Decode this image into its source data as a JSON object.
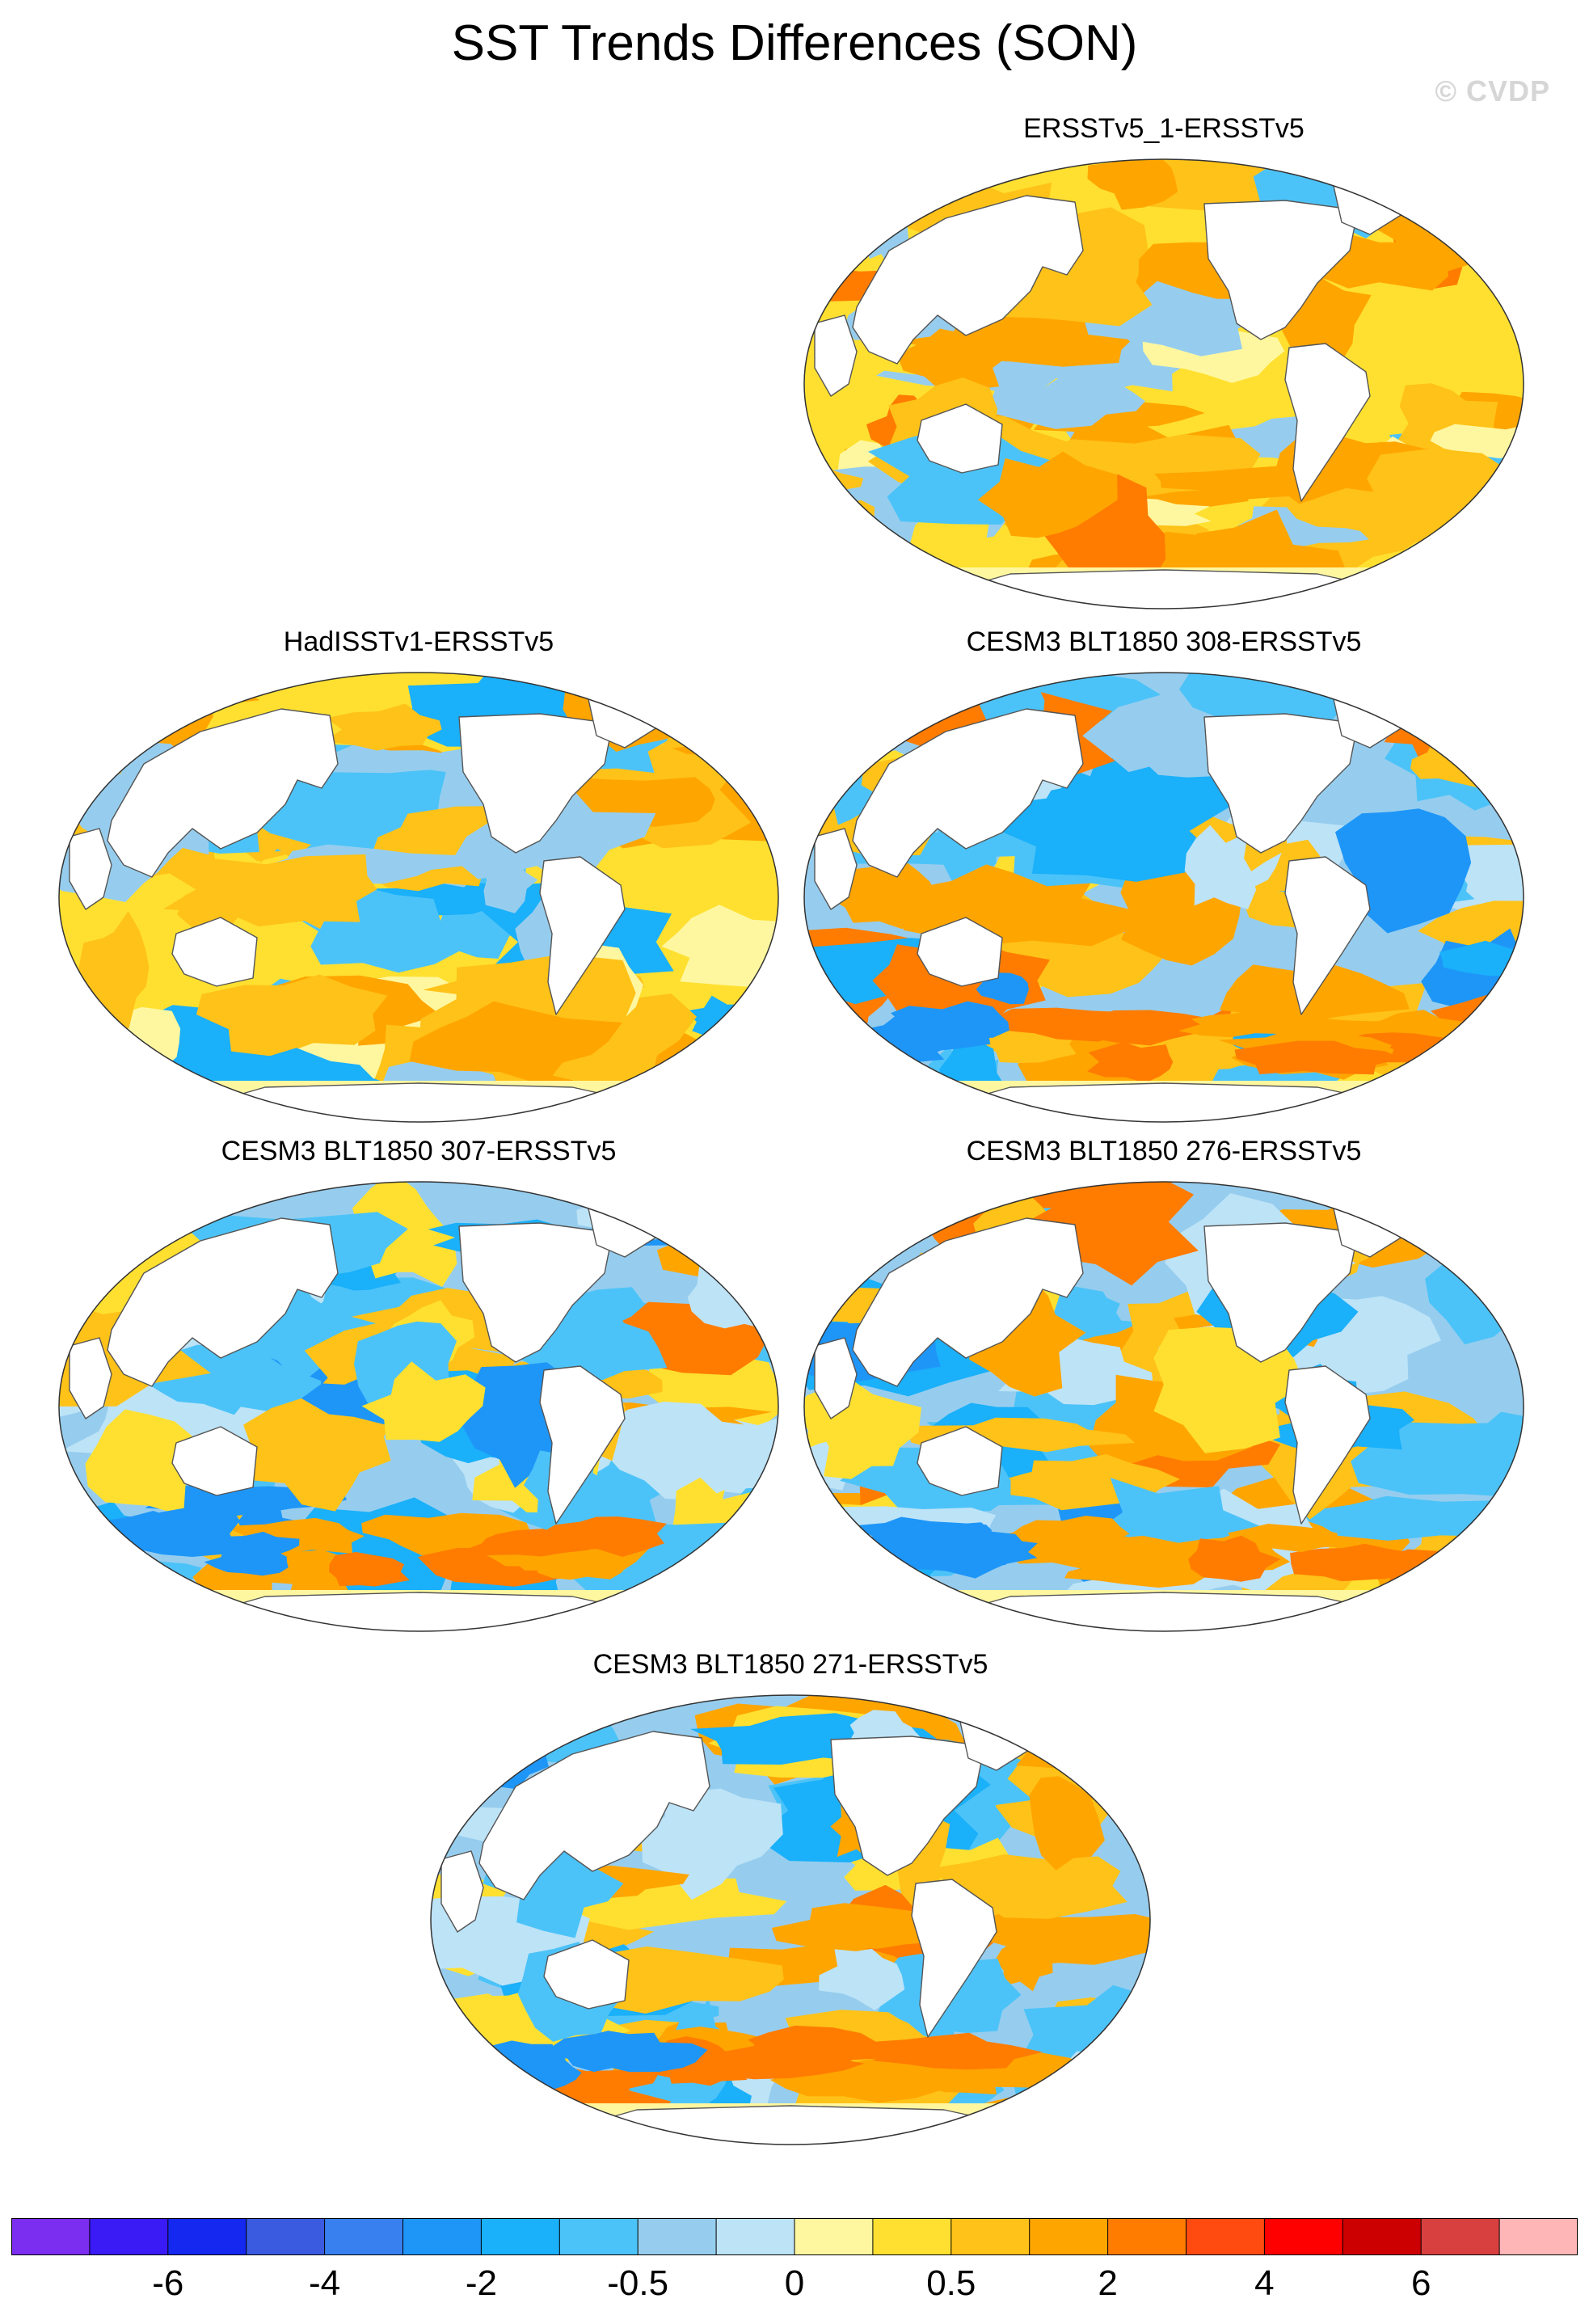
{
  "title": "SST Trends Differences (SON)",
  "watermark": "© CVDP",
  "panels": [
    {
      "label": "ERSSTv5_1-ERSSTv5",
      "pattern": "warm"
    },
    {
      "label": "HadISSTv1-ERSSTv5",
      "pattern": "warm-mixed"
    },
    {
      "label": "CESM3 BLT1850 308-ERSSTv5",
      "pattern": "cool-mixed"
    },
    {
      "label": "CESM3 BLT1850 307-ERSSTv5",
      "pattern": "cool-mixed"
    },
    {
      "label": "CESM3 BLT1850 276-ERSSTv5",
      "pattern": "cool-mixed"
    },
    {
      "label": "CESM3 BLT1850 271-ERSSTv5",
      "pattern": "cool-mixed"
    }
  ],
  "colorbar": {
    "colors": [
      "#7b2df0",
      "#3a1af5",
      "#1428f0",
      "#3a5ae0",
      "#3880f0",
      "#1e96f8",
      "#1ab0fa",
      "#4cc3f8",
      "#96cdee",
      "#bde3f7",
      "#fff7a0",
      "#ffe030",
      "#ffc218",
      "#ffa500",
      "#ff7c00",
      "#ff4a10",
      "#ff0000",
      "#cc0000",
      "#d84040",
      "#ffb6b6"
    ],
    "labels": [
      "-6",
      "-4",
      "-2",
      "-0.5",
      "0",
      "0.5",
      "2",
      "4",
      "6"
    ],
    "label_after_box": [
      2,
      4,
      6,
      8,
      10,
      12,
      14,
      16,
      18
    ]
  }
}
